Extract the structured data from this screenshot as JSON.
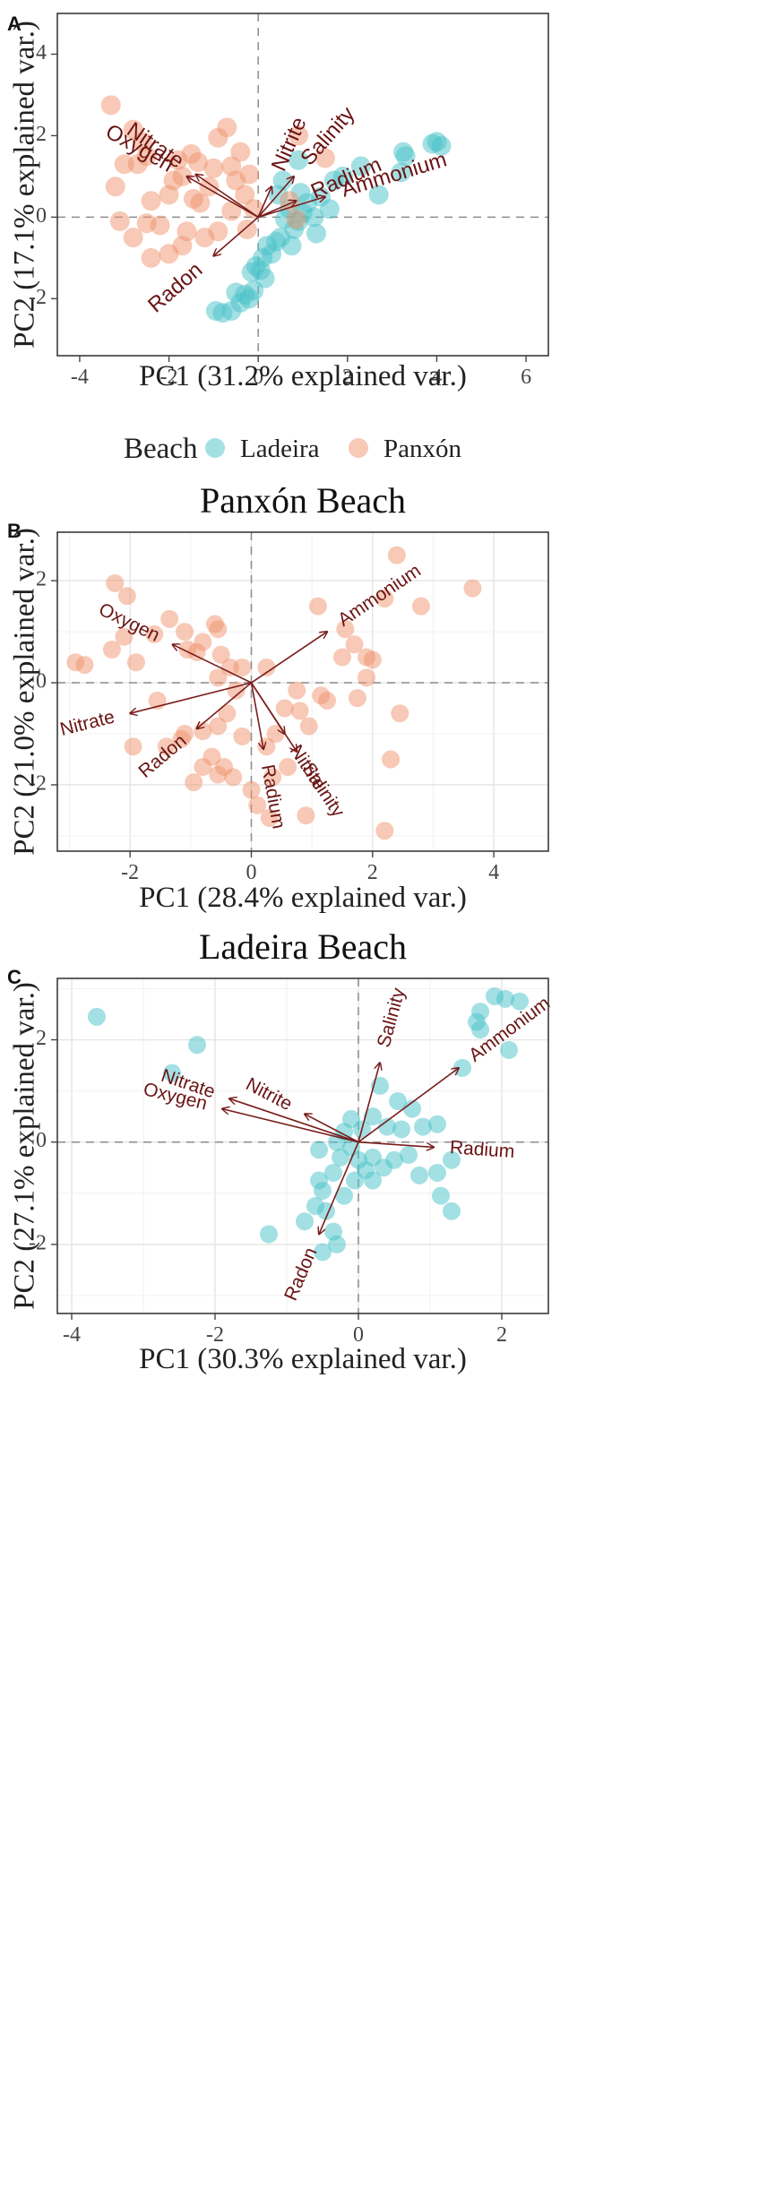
{
  "chart_data": [
    {
      "panel": "A",
      "type": "scatter",
      "title": "",
      "xlabel": "PC1 (31.2% explained var.)",
      "ylabel": "PC2 (17.1% explained var.)",
      "xlim": [
        -4.5,
        6.5
      ],
      "ylim": [
        -3.4,
        5.0
      ],
      "xticks": [
        -4,
        -2,
        0,
        2,
        4,
        6
      ],
      "yticks": [
        -2,
        0,
        2,
        4
      ],
      "grid": false,
      "legend": {
        "position": "bottom",
        "title": "Beach",
        "entries": [
          {
            "name": "Ladeira",
            "color": "#48c2c8"
          },
          {
            "name": "Panxón",
            "color": "#f0936e"
          }
        ]
      },
      "series": [
        {
          "name": "Ladeira",
          "color": "#48c2c8",
          "points": [
            [
              3.3,
              1.5
            ],
            [
              3.25,
              1.6
            ],
            [
              3.9,
              1.8
            ],
            [
              4.1,
              1.75
            ],
            [
              4.0,
              1.85
            ],
            [
              3.2,
              1.1
            ],
            [
              2.7,
              0.55
            ],
            [
              2.3,
              1.25
            ],
            [
              1.9,
              1.0
            ],
            [
              1.7,
              0.9
            ],
            [
              1.6,
              0.2
            ],
            [
              1.4,
              0.5
            ],
            [
              1.25,
              0.0
            ],
            [
              1.1,
              0.35
            ],
            [
              1.0,
              0.1
            ],
            [
              0.9,
              -0.1
            ],
            [
              0.8,
              -0.3
            ],
            [
              0.7,
              0.2
            ],
            [
              0.6,
              -0.05
            ],
            [
              0.5,
              -0.5
            ],
            [
              0.4,
              -0.6
            ],
            [
              0.3,
              -0.9
            ],
            [
              0.2,
              -0.7
            ],
            [
              0.1,
              -1.0
            ],
            [
              0.05,
              -1.3
            ],
            [
              -0.05,
              -1.2
            ],
            [
              0.15,
              -1.5
            ],
            [
              -0.1,
              -1.8
            ],
            [
              -0.2,
              -2.0
            ],
            [
              -0.3,
              -1.9
            ],
            [
              -0.4,
              -2.1
            ],
            [
              -0.5,
              -1.85
            ],
            [
              -0.6,
              -2.3
            ],
            [
              -0.8,
              -2.35
            ],
            [
              -0.95,
              -2.3
            ],
            [
              0.55,
              0.9
            ],
            [
              0.45,
              0.55
            ],
            [
              0.9,
              1.4
            ],
            [
              0.95,
              0.6
            ],
            [
              1.3,
              -0.4
            ],
            [
              0.75,
              -0.7
            ],
            [
              -0.15,
              -1.35
            ]
          ]
        },
        {
          "name": "Panxón",
          "color": "#f0936e",
          "points": [
            [
              -3.3,
              2.75
            ],
            [
              -2.8,
              2.15
            ],
            [
              -2.6,
              1.85
            ],
            [
              -2.5,
              1.5
            ],
            [
              -2.7,
              1.3
            ],
            [
              -3.0,
              1.3
            ],
            [
              -3.2,
              0.75
            ],
            [
              -3.1,
              -0.1
            ],
            [
              -2.4,
              0.4
            ],
            [
              -2.0,
              0.55
            ],
            [
              -1.7,
              1.0
            ],
            [
              -1.5,
              1.55
            ],
            [
              -1.3,
              0.35
            ],
            [
              -1.1,
              0.75
            ],
            [
              -0.9,
              1.95
            ],
            [
              -0.7,
              2.2
            ],
            [
              -0.6,
              1.25
            ],
            [
              -0.5,
              0.9
            ],
            [
              -0.4,
              1.6
            ],
            [
              -0.3,
              0.55
            ],
            [
              -0.1,
              0.2
            ],
            [
              -0.9,
              -0.35
            ],
            [
              -1.2,
              -0.5
            ],
            [
              -1.6,
              -0.35
            ],
            [
              -2.0,
              -0.9
            ],
            [
              -2.4,
              -1.0
            ],
            [
              -2.8,
              -0.5
            ],
            [
              -1.8,
              1.4
            ],
            [
              -1.0,
              1.2
            ],
            [
              -0.6,
              0.15
            ],
            [
              0.9,
              2.0
            ],
            [
              1.5,
              1.45
            ],
            [
              0.85,
              -0.05
            ],
            [
              0.7,
              0.4
            ],
            [
              -2.2,
              -0.2
            ],
            [
              -1.9,
              0.9
            ],
            [
              -1.45,
              0.45
            ],
            [
              -0.2,
              1.05
            ],
            [
              -1.7,
              -0.7
            ],
            [
              -1.35,
              1.35
            ],
            [
              -2.5,
              -0.15
            ],
            [
              -0.25,
              -0.3
            ]
          ]
        }
      ],
      "loadings": [
        {
          "name": "Oxygen",
          "x": -1.6,
          "y": 1.0
        },
        {
          "name": "Nitrate",
          "x": -1.4,
          "y": 1.05
        },
        {
          "name": "Nitrite",
          "x": 0.3,
          "y": 0.75
        },
        {
          "name": "Salinity",
          "x": 0.8,
          "y": 1.0
        },
        {
          "name": "Radium",
          "x": 0.85,
          "y": 0.4
        },
        {
          "name": "Ammonium",
          "x": 1.5,
          "y": 0.5
        },
        {
          "name": "Radon",
          "x": -1.0,
          "y": -0.95
        }
      ]
    },
    {
      "panel": "B",
      "type": "scatter",
      "title": "Panxón Beach",
      "xlabel": "PC1 (28.4% explained var.)",
      "ylabel": "PC2 (21.0% explained var.)",
      "xlim": [
        -3.2,
        4.9
      ],
      "ylim": [
        -3.3,
        2.95
      ],
      "xticks": [
        -2,
        0,
        2,
        4
      ],
      "yticks": [
        -2,
        0,
        2
      ],
      "grid": true,
      "series": [
        {
          "name": "Panxón",
          "color": "#f0936e",
          "points": [
            [
              -2.9,
              0.4
            ],
            [
              -2.75,
              0.35
            ],
            [
              -2.25,
              1.95
            ],
            [
              -2.05,
              1.7
            ],
            [
              -2.1,
              0.9
            ],
            [
              -2.3,
              0.65
            ],
            [
              -1.9,
              0.4
            ],
            [
              -1.6,
              0.95
            ],
            [
              -1.35,
              1.25
            ],
            [
              -1.1,
              1.0
            ],
            [
              -1.05,
              0.65
            ],
            [
              -0.8,
              0.8
            ],
            [
              -0.6,
              1.15
            ],
            [
              -0.55,
              1.05
            ],
            [
              -0.9,
              0.6
            ],
            [
              -0.5,
              0.55
            ],
            [
              -0.35,
              0.3
            ],
            [
              -0.15,
              0.3
            ],
            [
              -0.55,
              0.1
            ],
            [
              -0.25,
              -0.15
            ],
            [
              -0.4,
              -0.6
            ],
            [
              -0.55,
              -0.85
            ],
            [
              -0.8,
              -0.95
            ],
            [
              -1.1,
              -1.0
            ],
            [
              -1.15,
              -1.1
            ],
            [
              -1.4,
              -1.25
            ],
            [
              -1.95,
              -1.25
            ],
            [
              -1.55,
              -0.35
            ],
            [
              -0.65,
              -1.45
            ],
            [
              -0.45,
              -1.65
            ],
            [
              -0.3,
              -1.85
            ],
            [
              -0.55,
              -1.8
            ],
            [
              -0.8,
              -1.65
            ],
            [
              -0.95,
              -1.95
            ],
            [
              -0.15,
              -1.05
            ],
            [
              0.25,
              -1.25
            ],
            [
              0.4,
              -1.0
            ],
            [
              0.55,
              -0.5
            ],
            [
              0.8,
              -0.55
            ],
            [
              0.95,
              -0.85
            ],
            [
              1.15,
              -0.25
            ],
            [
              1.25,
              -0.35
            ],
            [
              0.75,
              -0.15
            ],
            [
              0.6,
              -1.65
            ],
            [
              0.35,
              -1.85
            ],
            [
              0.3,
              -2.65
            ],
            [
              0.9,
              -2.6
            ],
            [
              0.1,
              -2.4
            ],
            [
              0.0,
              -2.1
            ],
            [
              0.25,
              0.3
            ],
            [
              1.1,
              1.5
            ],
            [
              1.55,
              1.05
            ],
            [
              1.7,
              0.75
            ],
            [
              2.4,
              2.5
            ],
            [
              2.2,
              1.65
            ],
            [
              2.8,
              1.5
            ],
            [
              3.65,
              1.85
            ],
            [
              1.9,
              0.5
            ],
            [
              2.0,
              0.45
            ],
            [
              1.9,
              0.1
            ],
            [
              1.75,
              -0.3
            ],
            [
              2.3,
              -1.5
            ],
            [
              2.45,
              -0.6
            ],
            [
              2.2,
              -2.9
            ],
            [
              1.5,
              0.5
            ]
          ]
        }
      ],
      "loadings": [
        {
          "name": "Oxygen",
          "x": -1.3,
          "y": 0.75
        },
        {
          "name": "Nitrate",
          "x": -2.0,
          "y": -0.6
        },
        {
          "name": "Radon",
          "x": -0.9,
          "y": -0.9
        },
        {
          "name": "Radium",
          "x": 0.2,
          "y": -1.3
        },
        {
          "name": "Nitrite",
          "x": 0.55,
          "y": -1.0
        },
        {
          "name": "Salinity",
          "x": 0.75,
          "y": -1.35
        },
        {
          "name": "Ammonium",
          "x": 1.25,
          "y": 1.0
        }
      ]
    },
    {
      "panel": "C",
      "type": "scatter",
      "title": "Ladeira Beach",
      "xlabel": "PC1 (30.3% explained var.)",
      "ylabel": "PC2 (27.1% explained var.)",
      "xlim": [
        -4.2,
        2.65
      ],
      "ylim": [
        -3.35,
        3.2
      ],
      "xticks": [
        -4,
        -2,
        0,
        2
      ],
      "yticks": [
        -2,
        0,
        2
      ],
      "grid": true,
      "series": [
        {
          "name": "Ladeira",
          "color": "#48c2c8",
          "points": [
            [
              -3.65,
              2.45
            ],
            [
              -2.25,
              1.9
            ],
            [
              -2.6,
              1.35
            ],
            [
              1.9,
              2.85
            ],
            [
              2.05,
              2.8
            ],
            [
              2.25,
              2.75
            ],
            [
              1.7,
              2.55
            ],
            [
              1.65,
              2.35
            ],
            [
              1.7,
              2.2
            ],
            [
              1.45,
              1.45
            ],
            [
              2.1,
              1.8
            ],
            [
              0.3,
              1.1
            ],
            [
              0.55,
              0.8
            ],
            [
              0.75,
              0.65
            ],
            [
              0.2,
              0.5
            ],
            [
              0.4,
              0.3
            ],
            [
              0.6,
              0.25
            ],
            [
              0.9,
              0.3
            ],
            [
              1.1,
              0.35
            ],
            [
              0.05,
              0.25
            ],
            [
              -0.1,
              0.45
            ],
            [
              -0.2,
              0.2
            ],
            [
              -0.3,
              0.0
            ],
            [
              -0.1,
              -0.1
            ],
            [
              -0.25,
              -0.3
            ],
            [
              0.0,
              -0.35
            ],
            [
              0.1,
              -0.55
            ],
            [
              0.2,
              -0.3
            ],
            [
              0.35,
              -0.5
            ],
            [
              0.5,
              -0.35
            ],
            [
              0.7,
              -0.25
            ],
            [
              0.85,
              -0.65
            ],
            [
              1.1,
              -0.6
            ],
            [
              1.3,
              -0.35
            ],
            [
              1.15,
              -1.05
            ],
            [
              1.3,
              -1.35
            ],
            [
              -0.35,
              -0.6
            ],
            [
              -0.55,
              -0.75
            ],
            [
              -0.5,
              -0.95
            ],
            [
              -0.2,
              -1.05
            ],
            [
              0.2,
              -0.75
            ],
            [
              -0.45,
              -1.35
            ],
            [
              -0.6,
              -1.25
            ],
            [
              -0.75,
              -1.55
            ],
            [
              -0.35,
              -1.75
            ],
            [
              -0.3,
              -2.0
            ],
            [
              -0.5,
              -2.15
            ],
            [
              -1.25,
              -1.8
            ],
            [
              -0.55,
              -0.15
            ],
            [
              -0.05,
              -0.75
            ]
          ]
        }
      ],
      "loadings": [
        {
          "name": "Nitrate",
          "x": -1.8,
          "y": 0.85
        },
        {
          "name": "Oxygen",
          "x": -1.9,
          "y": 0.65
        },
        {
          "name": "Nitrite",
          "x": -0.75,
          "y": 0.55
        },
        {
          "name": "Salinity",
          "x": 0.3,
          "y": 1.55
        },
        {
          "name": "Ammonium",
          "x": 1.4,
          "y": 1.45
        },
        {
          "name": "Radium",
          "x": 1.05,
          "y": -0.1
        },
        {
          "name": "Radon",
          "x": -0.55,
          "y": -1.8
        }
      ]
    }
  ]
}
